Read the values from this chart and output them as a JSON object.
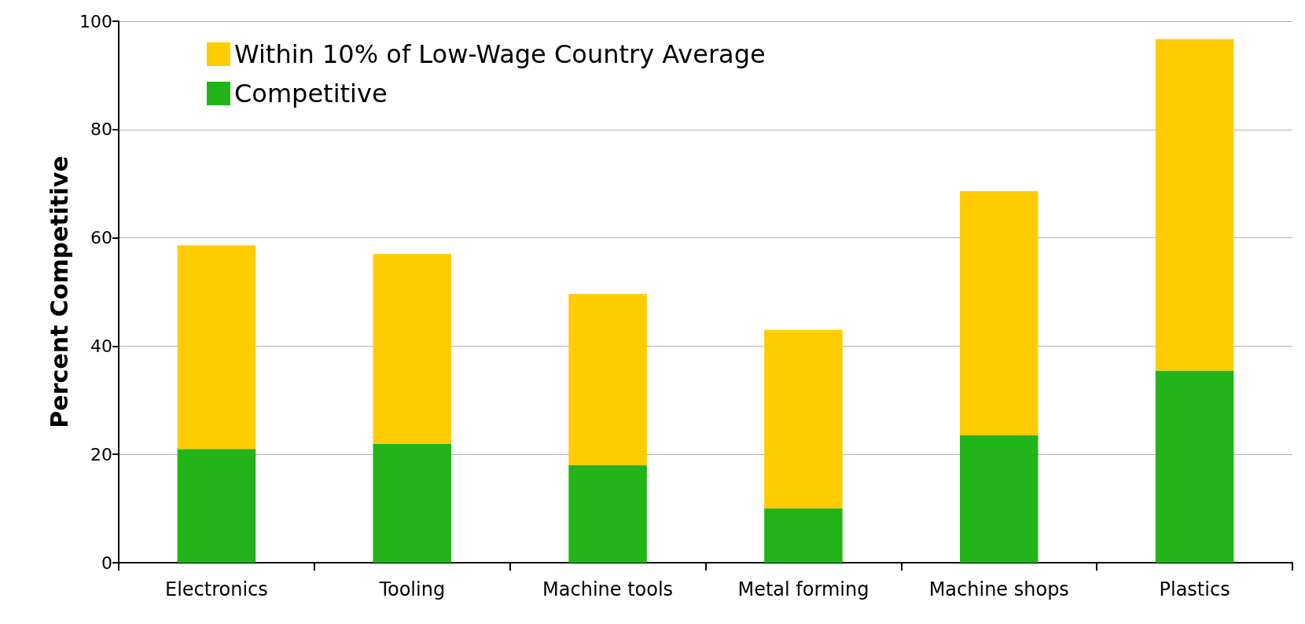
{
  "chart_data": {
    "type": "bar",
    "ylabel": "Percent Competitive",
    "categories": [
      "Electronics",
      "Tooling",
      "Machine tools",
      "Metal forming",
      "Machine shops",
      "Plastics"
    ],
    "series": [
      {
        "name": "Competitive",
        "color": "#22b418",
        "values": [
          21,
          22,
          18,
          10,
          23.5,
          35.5
        ]
      },
      {
        "name": "Within 10% of Low-Wage Country Average",
        "color": "#ffcc00",
        "values": [
          37.6,
          35,
          31.6,
          33,
          45.1,
          61.2
        ]
      }
    ],
    "stacked": true,
    "ylim": [
      0,
      100
    ],
    "yticks": [
      0,
      20,
      40,
      60,
      80,
      100
    ],
    "grid": "y",
    "legend": "top left"
  }
}
